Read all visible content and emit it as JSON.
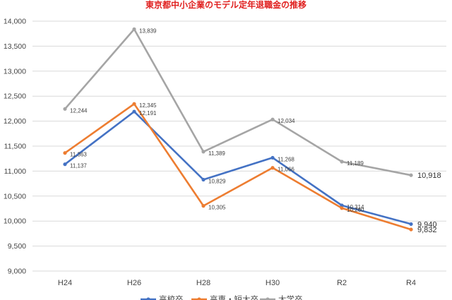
{
  "chart_data": {
    "type": "line",
    "title": "東京都中小企業のモデル定年退職金の推移",
    "categories": [
      "H24",
      "H26",
      "H28",
      "H30",
      "R2",
      "R4"
    ],
    "ylim": [
      9000,
      14000
    ],
    "ytick_step": 500,
    "yticks": [
      "9,000",
      "9,500",
      "10,000",
      "10,500",
      "11,000",
      "11,500",
      "12,000",
      "12,500",
      "13,000",
      "13,500",
      "14,000"
    ],
    "grid": true,
    "legend_position": "bottom",
    "series": [
      {
        "name": "高校卒",
        "color": "#4472c4",
        "values": [
          11137,
          12191,
          10829,
          11268,
          10314,
          9940
        ],
        "labels": [
          "11,137",
          "12,191",
          "10,829",
          "11,268",
          "10,314",
          "9,940"
        ]
      },
      {
        "name": "高専・短大卒",
        "color": "#ed7d31",
        "values": [
          11363,
          12345,
          10305,
          11066,
          10260,
          9832
        ],
        "labels": [
          "11,363",
          "12,345",
          "10,305",
          "11,066",
          "10,260",
          "9,832"
        ]
      },
      {
        "name": "大学卒",
        "color": "#a5a5a5",
        "values": [
          12244,
          13839,
          11389,
          12034,
          11189,
          10918
        ],
        "labels": [
          "12,244",
          "13,839",
          "11,389",
          "12,034",
          "11,189",
          "10,918"
        ]
      }
    ]
  }
}
